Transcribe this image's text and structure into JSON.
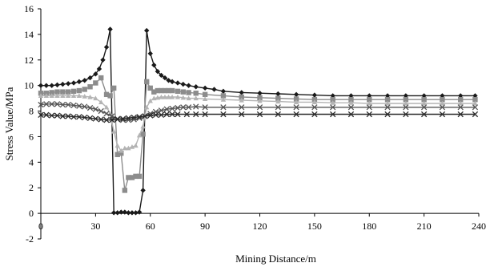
{
  "chart_data": {
    "type": "line",
    "title": "",
    "xlabel": "Mining Distance/m",
    "ylabel": "Stress Value/MPa",
    "xlim": [
      0,
      240
    ],
    "ylim": [
      -2,
      16
    ],
    "x_ticks": [
      0,
      30,
      60,
      90,
      120,
      150,
      180,
      210,
      240
    ],
    "y_ticks": [
      -2,
      0,
      2,
      4,
      6,
      8,
      10,
      12,
      14,
      16
    ],
    "grid": false,
    "legend": "none",
    "series": [
      {
        "marker": "diamond",
        "color": "#1a1a1a",
        "points": [
          [
            0,
            10.0
          ],
          [
            3,
            10.0
          ],
          [
            6,
            10.0
          ],
          [
            9,
            10.05
          ],
          [
            12,
            10.1
          ],
          [
            15,
            10.15
          ],
          [
            18,
            10.2
          ],
          [
            21,
            10.3
          ],
          [
            24,
            10.4
          ],
          [
            27,
            10.6
          ],
          [
            30,
            10.9
          ],
          [
            32,
            11.3
          ],
          [
            34,
            12.0
          ],
          [
            36,
            13.0
          ],
          [
            38,
            14.4
          ],
          [
            40,
            0.05
          ],
          [
            42,
            0.05
          ],
          [
            44,
            0.1
          ],
          [
            46,
            0.1
          ],
          [
            48,
            0.05
          ],
          [
            50,
            0.05
          ],
          [
            52,
            0.05
          ],
          [
            54,
            0.1
          ],
          [
            56,
            1.8
          ],
          [
            58,
            14.3
          ],
          [
            60,
            12.5
          ],
          [
            62,
            11.6
          ],
          [
            64,
            11.1
          ],
          [
            66,
            10.8
          ],
          [
            68,
            10.6
          ],
          [
            70,
            10.4
          ],
          [
            72,
            10.3
          ],
          [
            75,
            10.2
          ],
          [
            78,
            10.1
          ],
          [
            81,
            10.0
          ],
          [
            85,
            9.9
          ],
          [
            90,
            9.8
          ],
          [
            95,
            9.7
          ],
          [
            100,
            9.55
          ],
          [
            110,
            9.45
          ],
          [
            120,
            9.4
          ],
          [
            130,
            9.35
          ],
          [
            140,
            9.3
          ],
          [
            150,
            9.25
          ],
          [
            160,
            9.2
          ],
          [
            170,
            9.2
          ],
          [
            180,
            9.2
          ],
          [
            190,
            9.2
          ],
          [
            200,
            9.2
          ],
          [
            210,
            9.2
          ],
          [
            220,
            9.2
          ],
          [
            230,
            9.2
          ],
          [
            238,
            9.2
          ]
        ]
      },
      {
        "marker": "square",
        "color": "#8c8c8c",
        "points": [
          [
            0,
            9.4
          ],
          [
            3,
            9.4
          ],
          [
            6,
            9.45
          ],
          [
            9,
            9.5
          ],
          [
            12,
            9.5
          ],
          [
            15,
            9.5
          ],
          [
            18,
            9.55
          ],
          [
            21,
            9.6
          ],
          [
            24,
            9.7
          ],
          [
            27,
            9.9
          ],
          [
            30,
            10.2
          ],
          [
            33,
            10.6
          ],
          [
            36,
            9.3
          ],
          [
            38,
            9.2
          ],
          [
            40,
            9.8
          ],
          [
            42,
            4.6
          ],
          [
            44,
            4.7
          ],
          [
            46,
            1.8
          ],
          [
            48,
            2.8
          ],
          [
            50,
            2.8
          ],
          [
            52,
            2.9
          ],
          [
            54,
            2.9
          ],
          [
            56,
            6.2
          ],
          [
            58,
            10.3
          ],
          [
            60,
            9.8
          ],
          [
            62,
            9.5
          ],
          [
            64,
            9.6
          ],
          [
            66,
            9.6
          ],
          [
            68,
            9.6
          ],
          [
            70,
            9.6
          ],
          [
            72,
            9.6
          ],
          [
            75,
            9.55
          ],
          [
            78,
            9.5
          ],
          [
            81,
            9.45
          ],
          [
            85,
            9.4
          ],
          [
            90,
            9.3
          ],
          [
            100,
            9.2
          ],
          [
            110,
            9.1
          ],
          [
            120,
            9.05
          ],
          [
            130,
            9.0
          ],
          [
            140,
            8.95
          ],
          [
            150,
            8.9
          ],
          [
            160,
            8.9
          ],
          [
            170,
            8.9
          ],
          [
            180,
            8.9
          ],
          [
            190,
            8.9
          ],
          [
            200,
            8.9
          ],
          [
            210,
            8.9
          ],
          [
            220,
            8.9
          ],
          [
            230,
            8.9
          ],
          [
            238,
            8.9
          ]
        ]
      },
      {
        "marker": "triangle",
        "color": "#b4b4b4",
        "points": [
          [
            0,
            9.2
          ],
          [
            3,
            9.2
          ],
          [
            6,
            9.2
          ],
          [
            9,
            9.2
          ],
          [
            12,
            9.2
          ],
          [
            15,
            9.2
          ],
          [
            18,
            9.2
          ],
          [
            21,
            9.2
          ],
          [
            24,
            9.15
          ],
          [
            27,
            9.1
          ],
          [
            30,
            9.0
          ],
          [
            33,
            8.7
          ],
          [
            36,
            8.3
          ],
          [
            38,
            7.8
          ],
          [
            40,
            6.4
          ],
          [
            42,
            5.3
          ],
          [
            44,
            4.9
          ],
          [
            46,
            5.1
          ],
          [
            48,
            5.1
          ],
          [
            50,
            5.2
          ],
          [
            52,
            5.3
          ],
          [
            54,
            6.1
          ],
          [
            56,
            6.8
          ],
          [
            58,
            8.3
          ],
          [
            60,
            8.8
          ],
          [
            62,
            9.0
          ],
          [
            64,
            9.05
          ],
          [
            66,
            9.1
          ],
          [
            68,
            9.1
          ],
          [
            70,
            9.1
          ],
          [
            72,
            9.1
          ],
          [
            75,
            9.1
          ],
          [
            78,
            9.05
          ],
          [
            81,
            9.0
          ],
          [
            85,
            9.0
          ],
          [
            90,
            8.95
          ],
          [
            100,
            8.9
          ],
          [
            110,
            8.85
          ],
          [
            120,
            8.8
          ],
          [
            130,
            8.75
          ],
          [
            140,
            8.7
          ],
          [
            150,
            8.7
          ],
          [
            160,
            8.65
          ],
          [
            170,
            8.65
          ],
          [
            180,
            8.6
          ],
          [
            190,
            8.6
          ],
          [
            200,
            8.6
          ],
          [
            210,
            8.6
          ],
          [
            220,
            8.6
          ],
          [
            230,
            8.6
          ],
          [
            238,
            8.6
          ]
        ]
      },
      {
        "marker": "x",
        "color": "#555555",
        "points": [
          [
            0,
            8.5
          ],
          [
            3,
            8.55
          ],
          [
            6,
            8.55
          ],
          [
            9,
            8.55
          ],
          [
            12,
            8.5
          ],
          [
            15,
            8.5
          ],
          [
            18,
            8.45
          ],
          [
            21,
            8.4
          ],
          [
            24,
            8.35
          ],
          [
            27,
            8.25
          ],
          [
            30,
            8.15
          ],
          [
            33,
            8.0
          ],
          [
            36,
            7.8
          ],
          [
            39,
            7.6
          ],
          [
            42,
            7.4
          ],
          [
            45,
            7.3
          ],
          [
            48,
            7.3
          ],
          [
            51,
            7.35
          ],
          [
            54,
            7.45
          ],
          [
            57,
            7.6
          ],
          [
            60,
            7.8
          ],
          [
            63,
            7.95
          ],
          [
            66,
            8.05
          ],
          [
            69,
            8.15
          ],
          [
            72,
            8.2
          ],
          [
            75,
            8.25
          ],
          [
            78,
            8.3
          ],
          [
            81,
            8.3
          ],
          [
            85,
            8.35
          ],
          [
            90,
            8.3
          ],
          [
            100,
            8.3
          ],
          [
            110,
            8.3
          ],
          [
            120,
            8.3
          ],
          [
            130,
            8.3
          ],
          [
            140,
            8.3
          ],
          [
            150,
            8.3
          ],
          [
            160,
            8.3
          ],
          [
            170,
            8.3
          ],
          [
            180,
            8.3
          ],
          [
            190,
            8.3
          ],
          [
            200,
            8.3
          ],
          [
            210,
            8.3
          ],
          [
            220,
            8.3
          ],
          [
            230,
            8.3
          ],
          [
            238,
            8.3
          ]
        ]
      },
      {
        "marker": "x",
        "color": "#2a2a2a",
        "points": [
          [
            0,
            7.7
          ],
          [
            3,
            7.7
          ],
          [
            6,
            7.65
          ],
          [
            9,
            7.65
          ],
          [
            12,
            7.6
          ],
          [
            15,
            7.6
          ],
          [
            18,
            7.55
          ],
          [
            21,
            7.55
          ],
          [
            24,
            7.5
          ],
          [
            27,
            7.45
          ],
          [
            30,
            7.4
          ],
          [
            33,
            7.35
          ],
          [
            36,
            7.3
          ],
          [
            39,
            7.3
          ],
          [
            42,
            7.35
          ],
          [
            45,
            7.4
          ],
          [
            48,
            7.45
          ],
          [
            51,
            7.5
          ],
          [
            54,
            7.55
          ],
          [
            57,
            7.6
          ],
          [
            60,
            7.65
          ],
          [
            63,
            7.7
          ],
          [
            66,
            7.7
          ],
          [
            69,
            7.75
          ],
          [
            72,
            7.75
          ],
          [
            75,
            7.75
          ],
          [
            80,
            7.75
          ],
          [
            85,
            7.75
          ],
          [
            90,
            7.75
          ],
          [
            100,
            7.75
          ],
          [
            110,
            7.75
          ],
          [
            120,
            7.75
          ],
          [
            130,
            7.75
          ],
          [
            140,
            7.75
          ],
          [
            150,
            7.75
          ],
          [
            160,
            7.75
          ],
          [
            170,
            7.75
          ],
          [
            180,
            7.75
          ],
          [
            190,
            7.75
          ],
          [
            200,
            7.75
          ],
          [
            210,
            7.75
          ],
          [
            220,
            7.75
          ],
          [
            230,
            7.75
          ],
          [
            238,
            7.75
          ]
        ]
      }
    ]
  }
}
